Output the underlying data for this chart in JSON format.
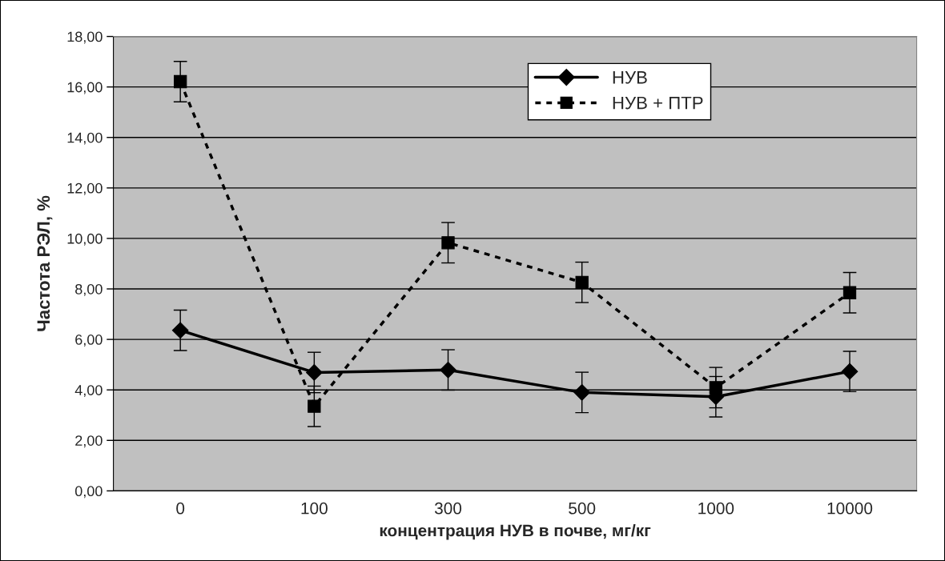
{
  "chart_data": {
    "type": "line",
    "xlabel": "концентрация НУВ в почве, мг/кг",
    "ylabel": "Частота РЭЛ, %",
    "categories": [
      "0",
      "100",
      "300",
      "500",
      "1000",
      "10000"
    ],
    "ylim": [
      0,
      18
    ],
    "yticks": [
      {
        "value": 0,
        "label": "0,00"
      },
      {
        "value": 2,
        "label": "2,00"
      },
      {
        "value": 4,
        "label": "4,00"
      },
      {
        "value": 6,
        "label": "6,00"
      },
      {
        "value": 8,
        "label": "8,00"
      },
      {
        "value": 10,
        "label": "10,00"
      },
      {
        "value": 12,
        "label": "12,00"
      },
      {
        "value": 14,
        "label": "14,00"
      },
      {
        "value": 16,
        "label": "16,00"
      },
      {
        "value": 18,
        "label": "18,00"
      }
    ],
    "grid": "y",
    "legend": "top",
    "series": [
      {
        "name": "НУВ",
        "color": "#000000",
        "marker": "diamond",
        "line_style": "solid",
        "values": [
          6.36,
          4.69,
          4.79,
          3.9,
          3.73,
          4.73
        ],
        "errors": [
          0.8,
          0.8,
          0.8,
          0.8,
          0.8,
          0.8
        ]
      },
      {
        "name": "НУВ + ПТР",
        "color": "#000000",
        "marker": "square",
        "line_style": "dashed",
        "values": [
          16.21,
          3.35,
          9.83,
          8.26,
          4.09,
          7.85
        ],
        "errors": [
          0.8,
          0.8,
          0.8,
          0.8,
          0.8,
          0.8
        ]
      }
    ]
  }
}
